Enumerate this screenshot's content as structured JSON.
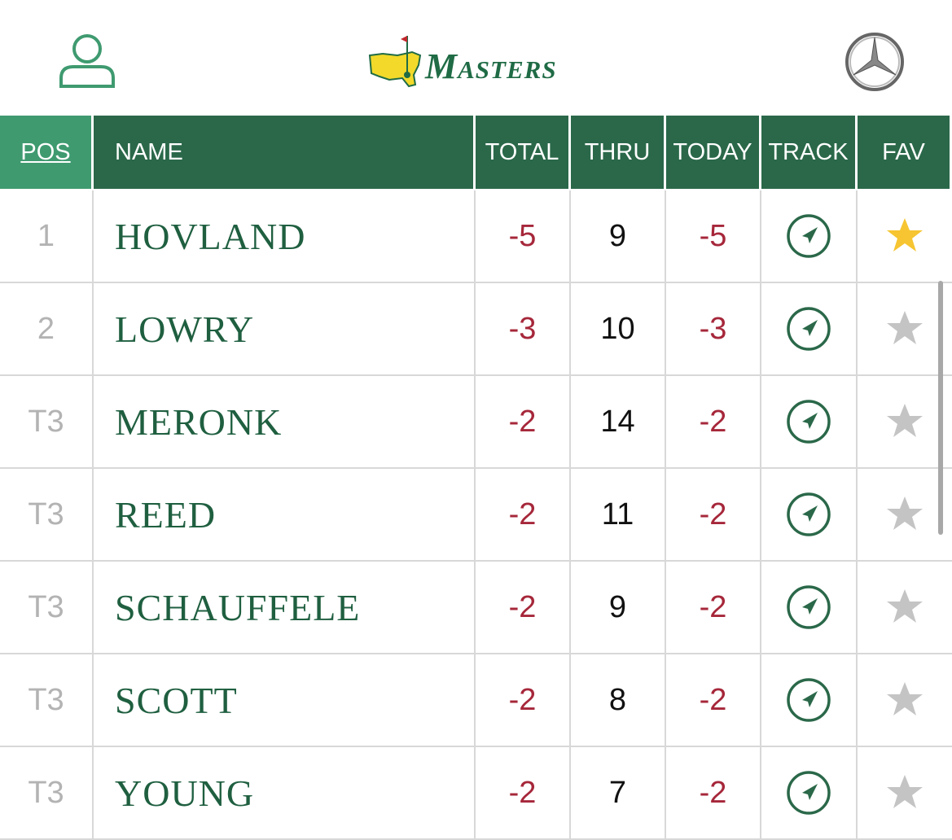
{
  "header": {
    "logo": "Masters"
  },
  "table": {
    "columns": [
      "POS",
      "NAME",
      "TOTAL",
      "THRU",
      "TODAY",
      "TRACK",
      "FAV"
    ],
    "rows": [
      {
        "pos": "1",
        "name": "HOVLAND",
        "total": "-5",
        "thru": "9",
        "today": "-5",
        "fav": true
      },
      {
        "pos": "2",
        "name": "LOWRY",
        "total": "-3",
        "thru": "10",
        "today": "-3",
        "fav": false
      },
      {
        "pos": "T3",
        "name": "MERONK",
        "total": "-2",
        "thru": "14",
        "today": "-2",
        "fav": false
      },
      {
        "pos": "T3",
        "name": "REED",
        "total": "-2",
        "thru": "11",
        "today": "-2",
        "fav": false
      },
      {
        "pos": "T3",
        "name": "SCHAUFFELE",
        "total": "-2",
        "thru": "9",
        "today": "-2",
        "fav": false
      },
      {
        "pos": "T3",
        "name": "SCOTT",
        "total": "-2",
        "thru": "8",
        "today": "-2",
        "fav": false
      },
      {
        "pos": "T3",
        "name": "YOUNG",
        "total": "-2",
        "thru": "7",
        "today": "-2",
        "fav": false
      }
    ]
  }
}
